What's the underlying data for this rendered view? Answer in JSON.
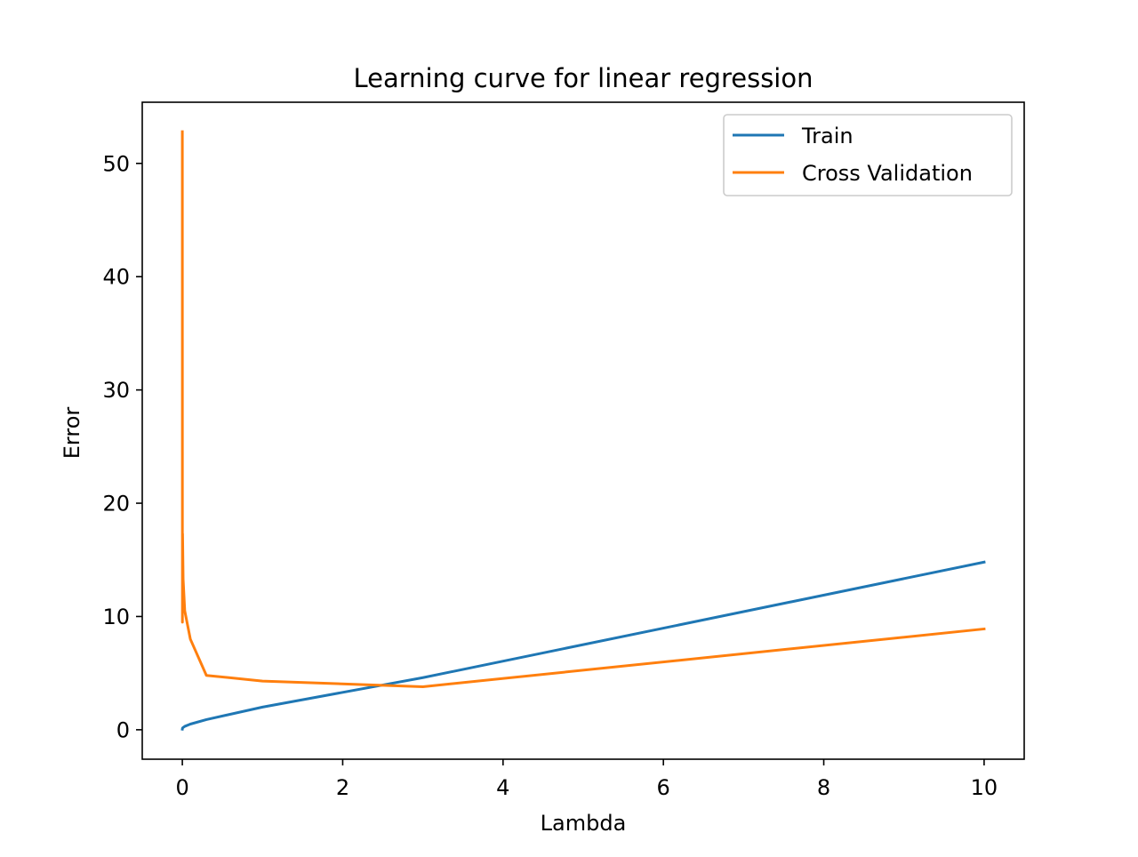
{
  "chart_data": {
    "type": "line",
    "title": "Learning curve for linear regression",
    "xlabel": "Lambda",
    "ylabel": "Error",
    "xlim": [
      -0.5,
      10.5
    ],
    "ylim": [
      -2.6,
      55.4
    ],
    "xticks": [
      0,
      2,
      4,
      6,
      8,
      10
    ],
    "yticks": [
      0,
      10,
      20,
      30,
      40,
      50
    ],
    "grid": false,
    "legend_position": "top-right",
    "x": [
      0,
      0.001,
      0.003,
      0.01,
      0.03,
      0.1,
      0.3,
      1,
      3,
      10
    ],
    "series": [
      {
        "name": "Train",
        "color": "#1f77b4",
        "values": [
          0.05,
          0.1,
          0.15,
          0.2,
          0.3,
          0.5,
          0.9,
          2.0,
          4.6,
          14.8
        ]
      },
      {
        "name": "Cross Validation",
        "color": "#ff7f0e",
        "values": [
          52.8,
          9.5,
          17.3,
          13.3,
          10.5,
          8.0,
          4.8,
          4.3,
          3.8,
          8.9
        ]
      }
    ]
  }
}
